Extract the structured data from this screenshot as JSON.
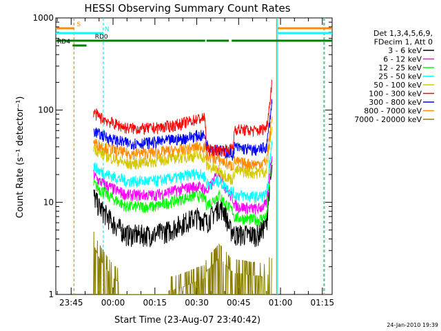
{
  "chart_data": {
    "type": "line",
    "title": "HESSI Observing Summary Count Rates",
    "xlabel": "Start Time (23-Aug-07 23:40:42)",
    "ylabel": "Count Rate (s⁻¹ detector⁻¹)",
    "yscale": "log",
    "ylim": [
      1,
      1000
    ],
    "xlim_minutes": [
      -20.5,
      78.5
    ],
    "x_ticks": [
      "23:45",
      "00:00",
      "00:15",
      "00:30",
      "00:45",
      "01:00",
      "01:15"
    ],
    "y_ticks": [
      "1",
      "10",
      "100",
      "1000"
    ],
    "grid": false,
    "legend_position": "right-outside",
    "legend_header": [
      "Det 1,3,4,5,6,9,",
      "FDecim 1, Att 0"
    ],
    "x_minutes": [
      -7,
      -5,
      0,
      5,
      10,
      15,
      20,
      25,
      30,
      33,
      33.5,
      35,
      38,
      40,
      42,
      43,
      43.5,
      45,
      50,
      52,
      55,
      56,
      57
    ],
    "series": [
      {
        "name": "3 - 6 keV",
        "color": "#000000",
        "values": [
          12,
          9,
          6,
          4.5,
          4.5,
          4.5,
          5,
          6,
          7,
          6.5,
          6,
          7,
          9,
          8,
          5,
          5,
          4.5,
          4.5,
          4.5,
          4.5,
          6,
          14,
          22
        ]
      },
      {
        "name": "6 - 12 keV",
        "color": "#ff00ff",
        "values": [
          20,
          17,
          14,
          12,
          12,
          12,
          13,
          14,
          15,
          14,
          13,
          15,
          22,
          15,
          12,
          11,
          9.5,
          9,
          8.5,
          8.5,
          9.5,
          20,
          35
        ]
      },
      {
        "name": "12 - 25 keV",
        "color": "#00ff00",
        "values": [
          16,
          14,
          11,
          9,
          9,
          9,
          10,
          11,
          12,
          11,
          9.5,
          10,
          12,
          10,
          8.5,
          8,
          7,
          6.8,
          6.5,
          6.5,
          7,
          16,
          30
        ]
      },
      {
        "name": "25 - 50 keV",
        "color": "#00ffff",
        "values": [
          25,
          22,
          19,
          17,
          17,
          17,
          18,
          19,
          21,
          19,
          16,
          16,
          17,
          15,
          13.5,
          13,
          12,
          12,
          11.5,
          11.5,
          12,
          25,
          45
        ]
      },
      {
        "name": "50 - 100 keV",
        "color": "#d4c800",
        "values": [
          40,
          35,
          30,
          26,
          27,
          28,
          30,
          31,
          32,
          31,
          25,
          24,
          22,
          20,
          18,
          18,
          22,
          22,
          21,
          21,
          22,
          40,
          70
        ]
      },
      {
        "name": "100 - 300 keV",
        "color": "#ff0000",
        "values": [
          95,
          85,
          72,
          64,
          63,
          64,
          67,
          72,
          80,
          82,
          38,
          37,
          37,
          37,
          38,
          38,
          63,
          62,
          60,
          60,
          65,
          110,
          220
        ]
      },
      {
        "name": "300 - 800 keV",
        "color": "#0000ff",
        "values": [
          60,
          55,
          48,
          44,
          44,
          45,
          47,
          49,
          53,
          53,
          42,
          40,
          37,
          35,
          34,
          33,
          40,
          39,
          37,
          37,
          40,
          70,
          130
        ]
      },
      {
        "name": "800 - 7000 keV",
        "color": "#ff8c00",
        "values": [
          45,
          42,
          37,
          34,
          34,
          35,
          36,
          37,
          40,
          40,
          32,
          31,
          29,
          27,
          25,
          25,
          28,
          27,
          26,
          26,
          28,
          50,
          85
        ]
      },
      {
        "name": "7000 - 20000 keV",
        "color": "#8b8000",
        "values": [
          3.5,
          2.5,
          1.5,
          1.2,
          1.1,
          1.1,
          1.1,
          1.2,
          1.4,
          1.5,
          1.8,
          2,
          2.5,
          2.2,
          1.8,
          1.8,
          1.7,
          1.7,
          1.6,
          1.6,
          1.5,
          1.8,
          2.5
        ]
      }
    ],
    "flag_bars": [
      {
        "label": "S",
        "color": "#ff8c00",
        "segments": [
          [
            -20.5,
            -14
          ],
          [
            59,
            78.5
          ]
        ]
      },
      {
        "label": "N",
        "color": "#00ffff",
        "segments": [
          [
            -20.5,
            -3.5
          ],
          [
            59,
            78.5
          ]
        ]
      },
      {
        "label": "RD0",
        "color": "#008000",
        "segments": [
          [
            -20.5,
            33
          ],
          [
            33.5,
            41.5
          ],
          [
            42.5,
            78.5
          ]
        ]
      },
      {
        "label": "RD4",
        "color": "#008000",
        "segments": [
          [
            -14.5,
            -9.5
          ]
        ]
      }
    ],
    "vlines": [
      {
        "x": -14,
        "color": "#ff8c00",
        "style": "dashed"
      },
      {
        "x": -3.5,
        "color": "#00ffff",
        "style": "dashed"
      },
      {
        "x": 58.6,
        "color": "#ff8c00",
        "style": "solid"
      },
      {
        "x": 59,
        "color": "#00ffff",
        "style": "solid"
      },
      {
        "x": 75.5,
        "color": "#ff8c00",
        "style": "dashed"
      },
      {
        "x": 75.8,
        "color": "#00ffff",
        "style": "dashed"
      }
    ],
    "footer_date": "24-Jan-2010 19:39"
  }
}
